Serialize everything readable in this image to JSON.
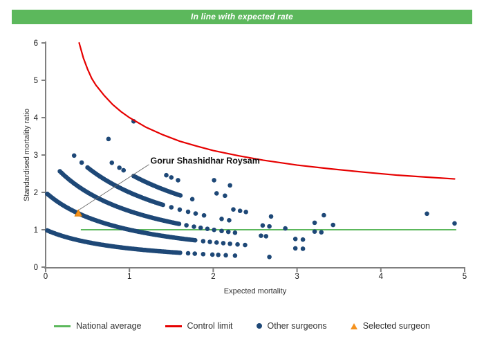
{
  "banner": {
    "text": "In line with expected rate",
    "bg": "#5cb85c"
  },
  "colors": {
    "banner_green": "#5cb85c",
    "national_average_green": "#5cb85c",
    "control_limit_red": "#e60000",
    "surgeon_dot_navy": "#1e4877",
    "selected_orange_fill": "#f5921e",
    "selected_orange_border": "#d97a00",
    "axis_gray": "#7f7f7f",
    "text_dark": "#1a1a1a",
    "annotation_line": "#666666"
  },
  "chart_data": {
    "type": "scatter",
    "title": "",
    "xlabel": "Expected mortality",
    "ylabel": "Standardised mortality ratio",
    "xlim": [
      0,
      5
    ],
    "ylim": [
      0,
      6
    ],
    "xticks": [
      0,
      1,
      2,
      3,
      4,
      5
    ],
    "yticks": [
      0,
      1,
      2,
      3,
      4,
      5,
      6
    ],
    "grid": false,
    "national_average": {
      "value": 1,
      "x_start": 0.42,
      "x_end": 4.9
    },
    "control_limit_points": [
      [
        0.4,
        6.0
      ],
      [
        0.45,
        5.6
      ],
      [
        0.5,
        5.3
      ],
      [
        0.55,
        5.05
      ],
      [
        0.6,
        4.87
      ],
      [
        0.7,
        4.59
      ],
      [
        0.8,
        4.35
      ],
      [
        0.9,
        4.16
      ],
      [
        1.0,
        4.0
      ],
      [
        1.2,
        3.74
      ],
      [
        1.4,
        3.54
      ],
      [
        1.6,
        3.37
      ],
      [
        1.8,
        3.24
      ],
      [
        2.0,
        3.12
      ],
      [
        2.3,
        2.98
      ],
      [
        2.6,
        2.86
      ],
      [
        3.0,
        2.73
      ],
      [
        3.4,
        2.63
      ],
      [
        3.8,
        2.54
      ],
      [
        4.2,
        2.46
      ],
      [
        4.6,
        2.4
      ],
      [
        4.88,
        2.36
      ]
    ],
    "surgeon_bands": {
      "formula": "smr = deaths / (1 + expected_mortality)",
      "bands": [
        {
          "deaths": 1,
          "solid_x": [
            0.02,
            1.62
          ],
          "solid_step": 0.018,
          "dot_x": [
            1.7,
            1.78,
            1.88,
            1.99,
            2.06,
            2.15,
            2.26,
            2.67
          ]
        },
        {
          "deaths": 2,
          "solid_x": [
            0.02,
            1.8
          ],
          "solid_step": 0.018,
          "dot_x": [
            1.88,
            1.96,
            2.04,
            2.12,
            2.2,
            2.29,
            2.38,
            2.98,
            3.07
          ]
        },
        {
          "deaths": 3,
          "solid_x": [
            0.17,
            1.6
          ],
          "solid_step": 0.018,
          "dot_x": [
            1.68,
            1.77,
            1.85,
            1.93,
            2.01,
            2.1,
            2.18,
            2.26,
            2.57,
            2.63,
            2.98,
            3.07
          ]
        },
        {
          "deaths": 4,
          "solid_x": [
            0.5,
            1.4
          ],
          "solid_step": 0.018,
          "dot_x": [
            0.34,
            0.43,
            1.5,
            1.6,
            1.7,
            1.79,
            1.89,
            2.1,
            2.19,
            2.59,
            2.67,
            2.86,
            3.21,
            3.29
          ]
        },
        {
          "deaths": 5,
          "solid_x": [
            1.05,
            1.62
          ],
          "solid_step": 0.018,
          "dot_x": [
            0.79,
            0.88,
            0.93,
            1.75,
            2.24,
            2.32,
            2.39,
            2.69,
            3.21,
            3.43
          ]
        },
        {
          "deaths": 6,
          "solid_x": null,
          "dot_x": [
            0.75,
            1.44,
            1.5,
            1.58,
            2.04,
            2.14,
            3.32
          ]
        },
        {
          "deaths": 7,
          "solid_x": null,
          "dot_x": [
            2.01,
            2.2
          ]
        },
        {
          "deaths": 8,
          "solid_x": null,
          "dot_x": [
            1.05
          ]
        }
      ]
    },
    "other_points": [
      [
        4.55,
        1.43
      ],
      [
        4.88,
        1.17
      ]
    ],
    "selected_surgeon": {
      "label": "Gorur Shashidhar Roysam",
      "x": 0.39,
      "y": 1.44,
      "label_pos": [
        1.25,
        2.82
      ]
    }
  },
  "legend": {
    "items": [
      {
        "label": "National average",
        "swatch": "line",
        "color": "#5cb85c"
      },
      {
        "label": "Control limit",
        "swatch": "line",
        "color": "#e60000"
      },
      {
        "label": "Other surgeons",
        "swatch": "dot",
        "color": "#1e4877"
      },
      {
        "label": "Selected surgeon",
        "swatch": "triangle",
        "color": "#f5921e"
      }
    ]
  }
}
